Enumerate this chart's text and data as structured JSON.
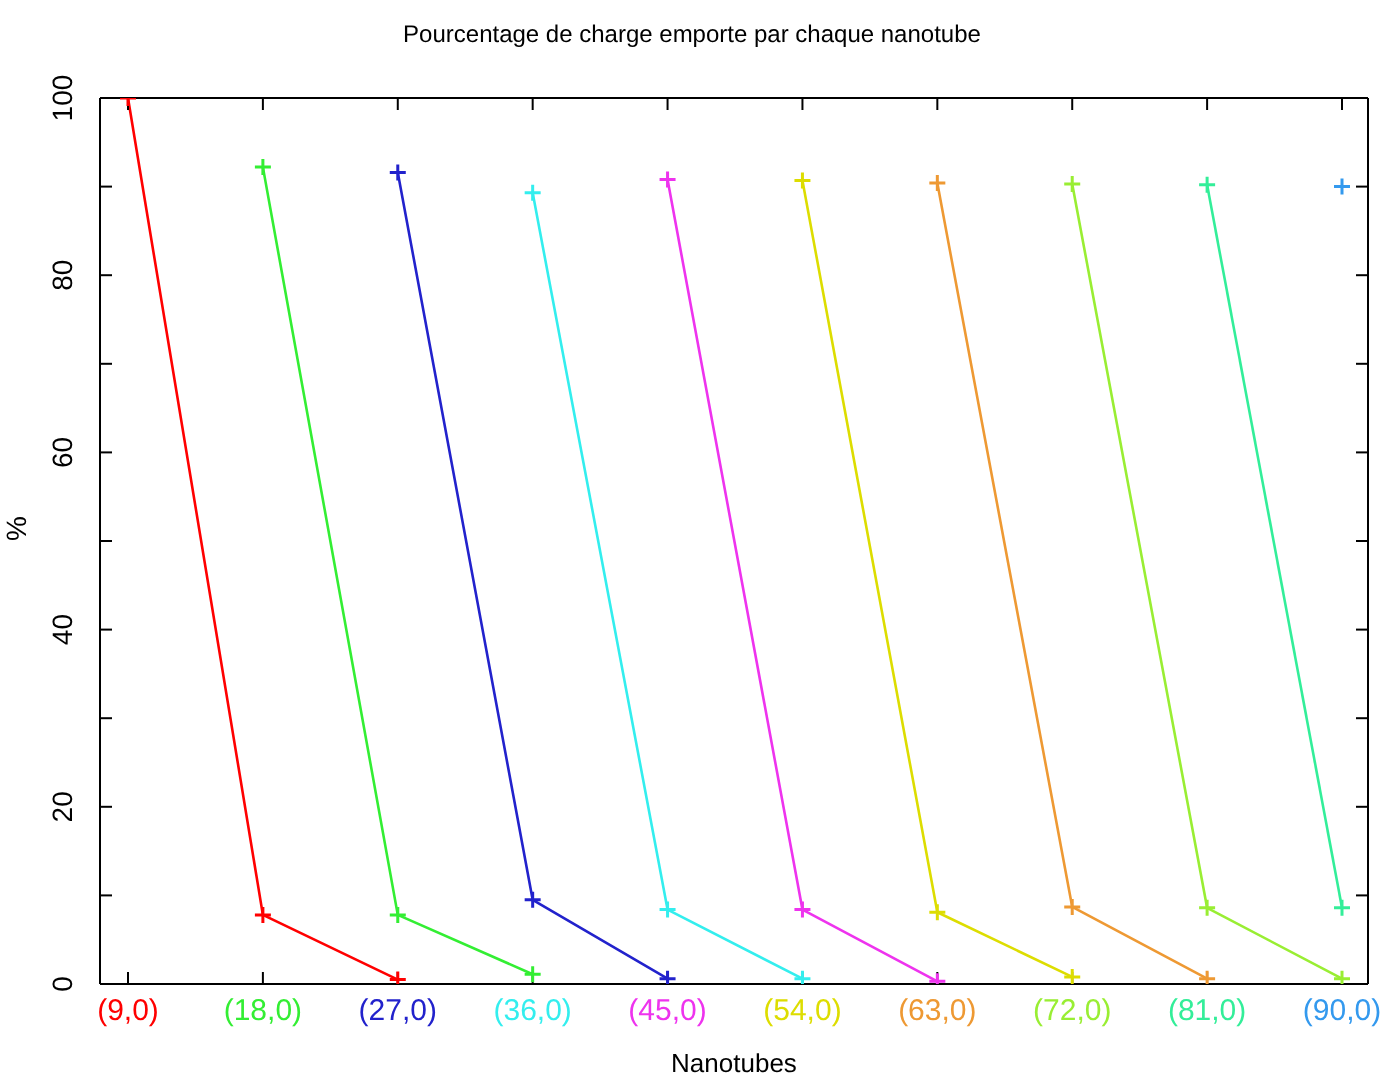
{
  "chart_data": {
    "type": "line",
    "title": "Pourcentage de charge emporte par chaque nanotube",
    "xlabel": "Nanotubes",
    "ylabel": "%",
    "categories": [
      "(9,0)",
      "(18,0)",
      "(27,0)",
      "(36,0)",
      "(45,0)",
      "(54,0)",
      "(63,0)",
      "(72,0)",
      "(81,0)",
      "(90,0)"
    ],
    "ylim": [
      0,
      100
    ],
    "yticks": [
      0,
      {
        "value": 10,
        "label": null
      },
      20,
      {
        "value": 30,
        "label": null
      },
      40,
      {
        "value": 50,
        "label": null
      },
      60,
      {
        "value": 70,
        "label": null
      },
      80,
      {
        "value": 90,
        "label": null
      },
      100
    ],
    "marker": "cross",
    "line_style": "solid",
    "series": [
      {
        "color": "#ff0000",
        "values": [
          100,
          7.8,
          0.5,
          null,
          null,
          null,
          null,
          null,
          null,
          null
        ]
      },
      {
        "color": "#33ee33",
        "values": [
          null,
          92.2,
          7.8,
          1.1,
          null,
          null,
          null,
          null,
          null,
          null
        ]
      },
      {
        "color": "#2222cc",
        "values": [
          null,
          null,
          91.6,
          9.5,
          0.6,
          null,
          null,
          null,
          null,
          null
        ]
      },
      {
        "color": "#33eeee",
        "values": [
          null,
          null,
          null,
          89.3,
          8.4,
          0.6,
          null,
          null,
          null,
          null
        ]
      },
      {
        "color": "#ee33ee",
        "values": [
          null,
          null,
          null,
          null,
          90.8,
          8.4,
          0.3,
          null,
          null,
          null
        ]
      },
      {
        "color": "#dddd00",
        "values": [
          null,
          null,
          null,
          null,
          null,
          90.7,
          8.1,
          0.8,
          null,
          null
        ]
      },
      {
        "color": "#ee9933",
        "values": [
          null,
          null,
          null,
          null,
          null,
          null,
          90.4,
          8.7,
          0.6,
          null
        ]
      },
      {
        "color": "#99ee33",
        "values": [
          null,
          null,
          null,
          null,
          null,
          null,
          null,
          90.3,
          8.6,
          0.6
        ]
      },
      {
        "color": "#33ee99",
        "values": [
          null,
          null,
          null,
          null,
          null,
          null,
          null,
          null,
          90.2,
          8.6
        ]
      },
      {
        "color": "#3399ee",
        "values": [
          null,
          null,
          null,
          null,
          null,
          null,
          null,
          null,
          null,
          90
        ]
      }
    ]
  }
}
